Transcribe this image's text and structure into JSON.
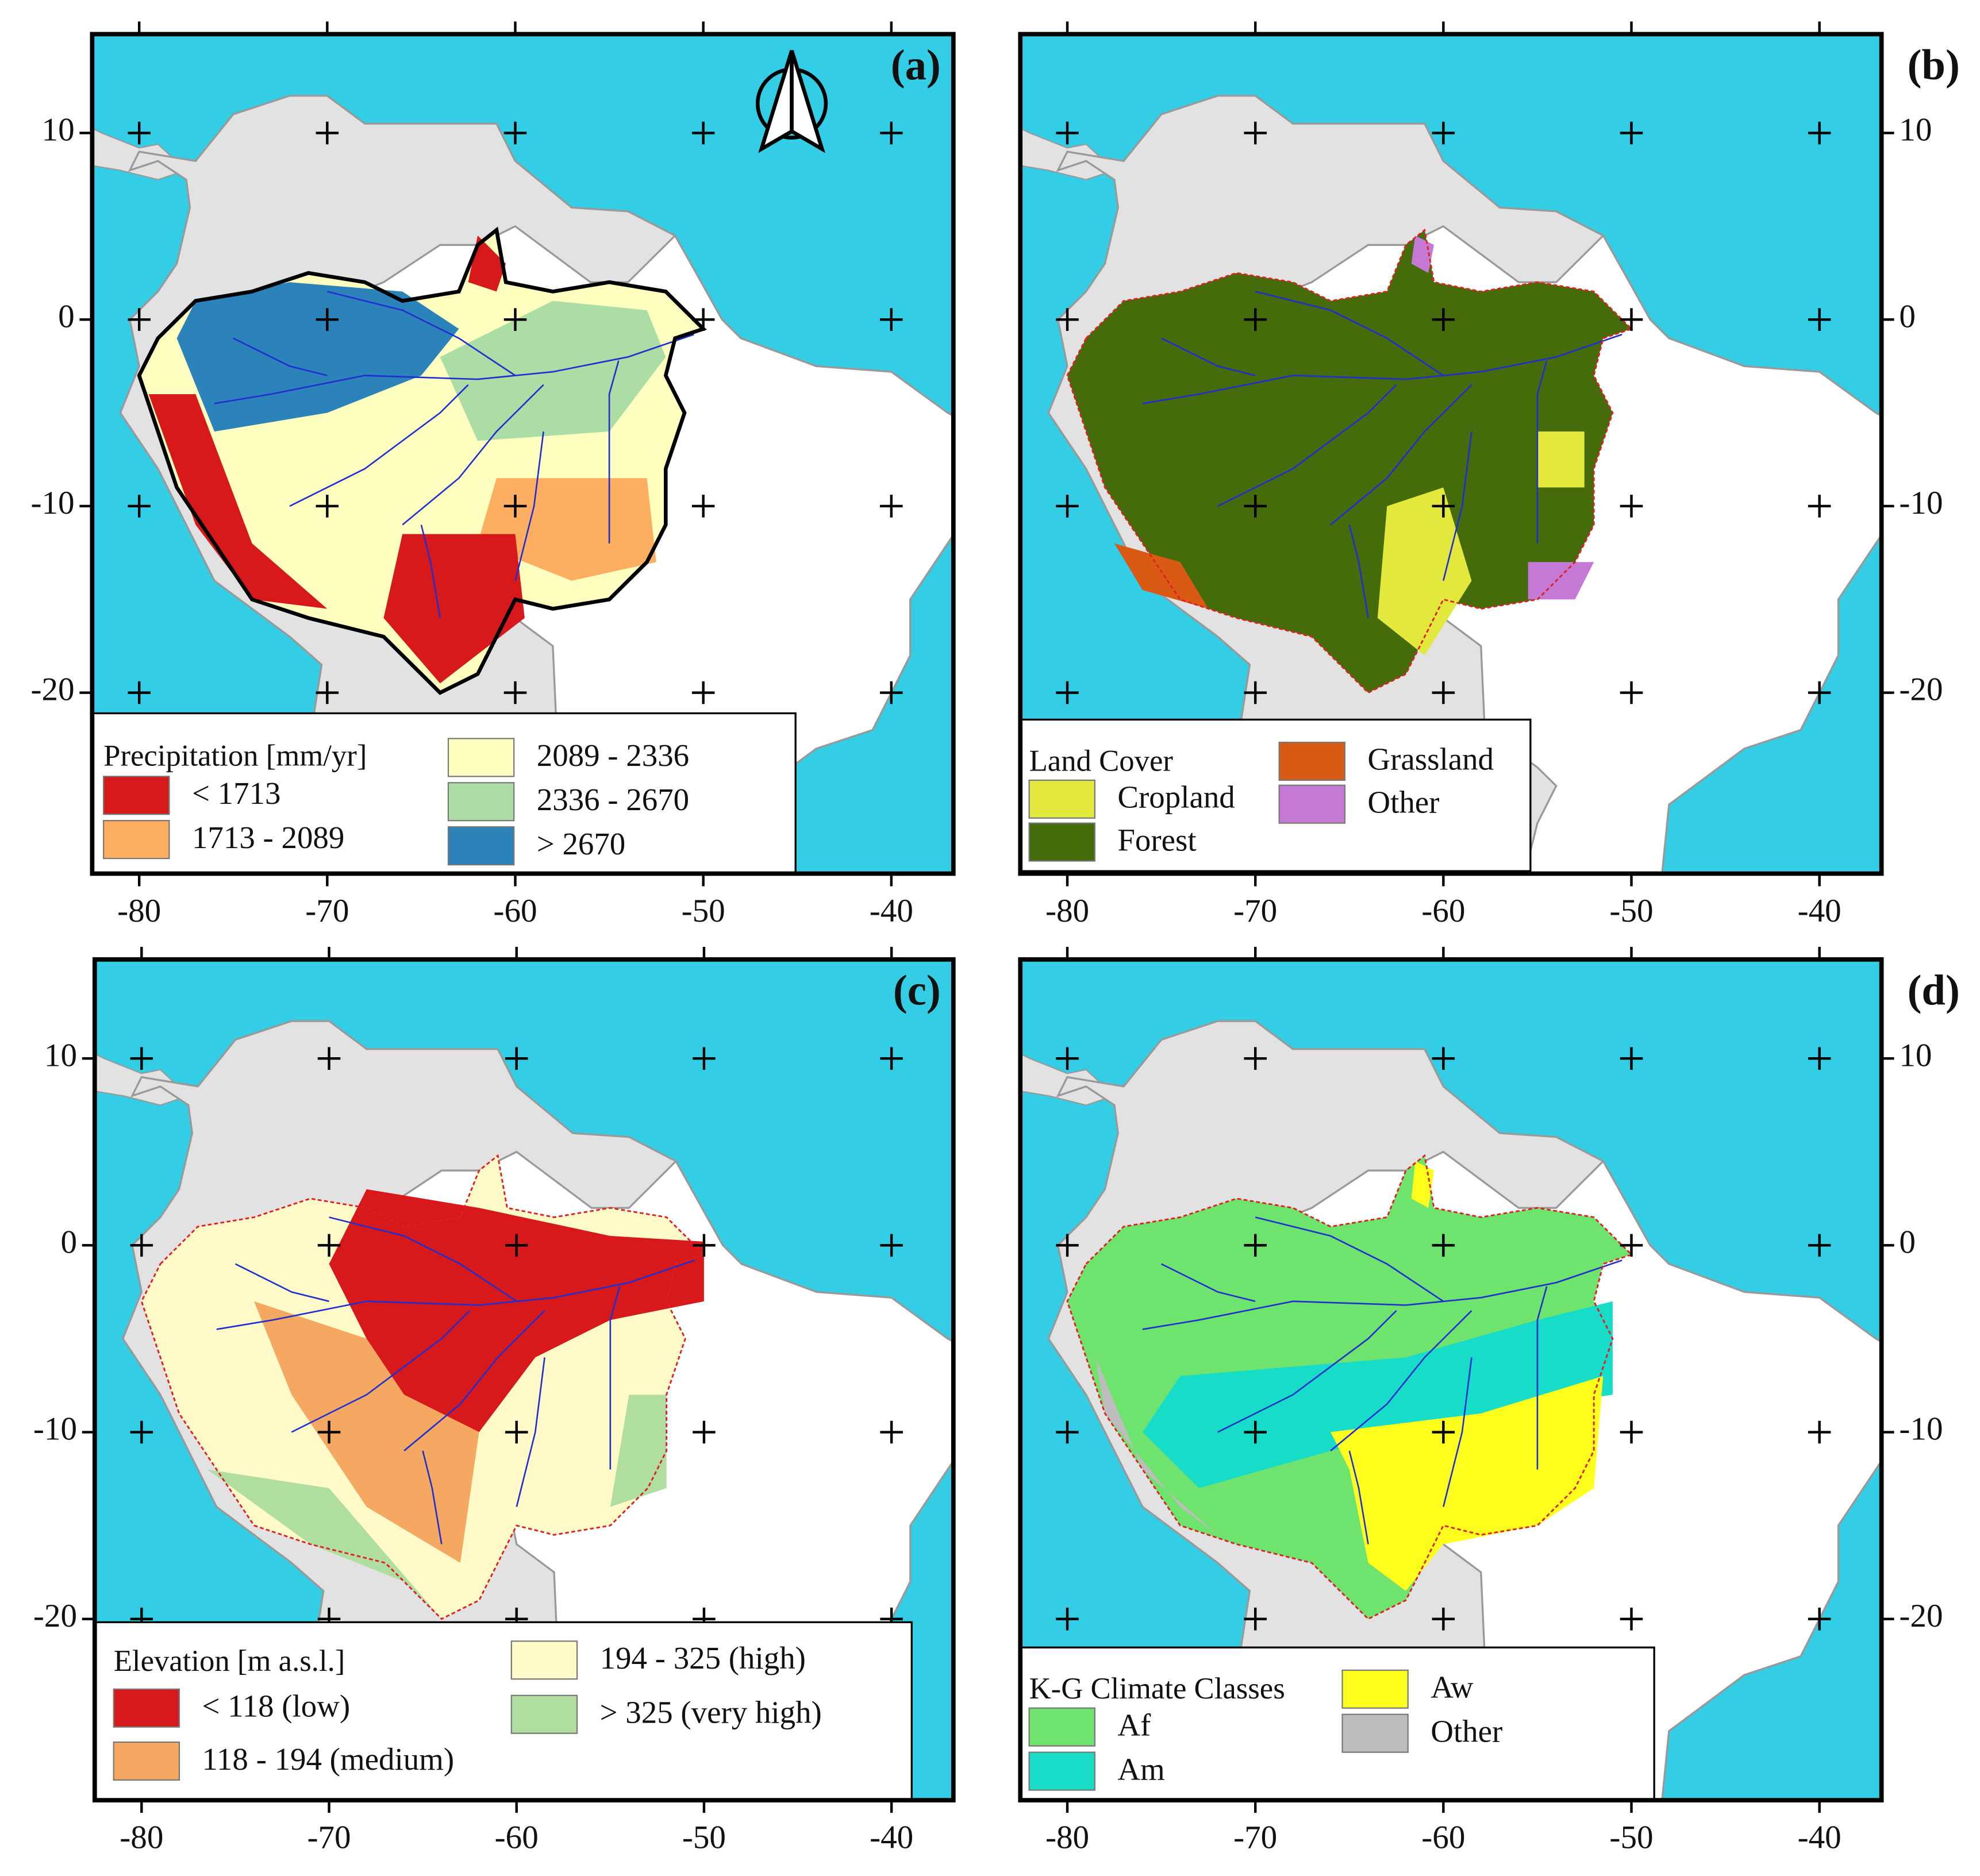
{
  "xlim": [
    -82.5,
    -36.7
  ],
  "ylim": [
    -29.7,
    15.3
  ],
  "xticks": [
    -80,
    -70,
    -60,
    -50,
    -40
  ],
  "yticks": [
    10,
    0,
    -10,
    -20
  ],
  "panels": [
    {
      "label": "(a)",
      "legend": {
        "title": "Precipitation [mm/yr]",
        "items": [
          {
            "label": "< 1713",
            "color": "#d7191c"
          },
          {
            "label": "1713 - 2089",
            "color": "#fdae61"
          },
          {
            "label": "2089 - 2336",
            "color": "#ffffc0"
          },
          {
            "label": "2336 - 2670",
            "color": "#abdda4"
          },
          {
            "label": "> 2670",
            "color": "#2b83ba"
          }
        ]
      }
    },
    {
      "label": "(b)",
      "legend": {
        "title": "Land Cover",
        "items": [
          {
            "label": "Cropland",
            "color": "#e3e83c"
          },
          {
            "label": "Forest",
            "color": "#456b0a"
          },
          {
            "label": "Grassland",
            "color": "#d95a14"
          },
          {
            "label": "Other",
            "color": "#c47ad4"
          }
        ]
      }
    },
    {
      "label": "(c)",
      "legend": {
        "title": "Elevation [m a.s.l.]",
        "items": [
          {
            "label": "< 118 (low)",
            "color": "#d7191c"
          },
          {
            "label": "118 - 194 (medium)",
            "color": "#f5a862"
          },
          {
            "label": "194 - 325 (high)",
            "color": "#fffac8"
          },
          {
            "label": "> 325 (very high)",
            "color": "#b0dea0"
          }
        ]
      }
    },
    {
      "label": "(d)",
      "legend": {
        "title": "K-G Climate Classes",
        "items": [
          {
            "label": "Af",
            "color": "#6ee36e"
          },
          {
            "label": "Am",
            "color": "#17dcc8"
          },
          {
            "label": "Aw",
            "color": "#ffff1e"
          },
          {
            "label": "Other",
            "color": "#bdbdbd"
          }
        ]
      }
    }
  ]
}
